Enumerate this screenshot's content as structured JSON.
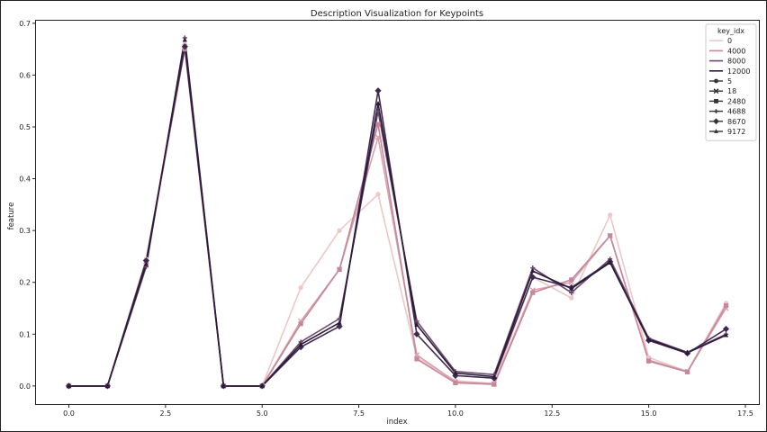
{
  "chart_data": {
    "type": "line",
    "title": "Description Visualization for Keypoints",
    "xlabel": "index",
    "ylabel": "feature",
    "xlim": [
      -0.85,
      17.85
    ],
    "ylim": [
      -0.035,
      0.705
    ],
    "xticks": [
      0.0,
      2.5,
      5.0,
      7.5,
      10.0,
      12.5,
      15.0,
      17.5
    ],
    "xtick_labels": [
      "0.0",
      "2.5",
      "5.0",
      "7.5",
      "10.0",
      "12.5",
      "15.0",
      "17.5"
    ],
    "yticks": [
      0.0,
      0.1,
      0.2,
      0.3,
      0.4,
      0.5,
      0.6,
      0.7
    ],
    "ytick_labels": [
      "0.0",
      "0.1",
      "0.2",
      "0.3",
      "0.4",
      "0.5",
      "0.6",
      "0.7"
    ],
    "grid": false,
    "legend": {
      "title": "key_idx",
      "placement": "top-right",
      "hue_entries": [
        {
          "label": "0",
          "color": "#ecc8c8"
        },
        {
          "label": "4000",
          "color": "#c7879a"
        },
        {
          "label": "8000",
          "color": "#6e4a6b"
        },
        {
          "label": "12000",
          "color": "#2a1b3a"
        }
      ],
      "style_entries": [
        {
          "label": "5",
          "marker": "circle"
        },
        {
          "label": "18",
          "marker": "x"
        },
        {
          "label": "2480",
          "marker": "square"
        },
        {
          "label": "4688",
          "marker": "plus"
        },
        {
          "label": "8670",
          "marker": "diamond"
        },
        {
          "label": "9172",
          "marker": "triangle"
        }
      ]
    },
    "x": [
      0,
      1,
      2,
      3,
      4,
      5,
      6,
      7,
      8,
      9,
      10,
      11,
      12,
      13,
      14,
      15,
      16,
      17
    ],
    "series": [
      {
        "name": "5",
        "color": "#ecc8c8",
        "marker": "circle",
        "values": [
          0,
          0,
          0.245,
          0.66,
          0,
          0,
          0.19,
          0.3,
          0.37,
          0.055,
          0.01,
          0.005,
          0.21,
          0.17,
          0.33,
          0.055,
          0.028,
          0.16
        ]
      },
      {
        "name": "18",
        "color": "#d9a3ae",
        "marker": "x",
        "values": [
          0,
          0,
          0.24,
          0.655,
          0,
          0,
          0.125,
          0.225,
          0.48,
          0.06,
          0.008,
          0.004,
          0.185,
          0.2,
          0.29,
          0.05,
          0.028,
          0.15
        ]
      },
      {
        "name": "2480",
        "color": "#c7879a",
        "marker": "square",
        "values": [
          0,
          0,
          0.238,
          0.65,
          0,
          0,
          0.12,
          0.225,
          0.505,
          0.052,
          0.006,
          0.003,
          0.18,
          0.205,
          0.29,
          0.048,
          0.027,
          0.155
        ]
      },
      {
        "name": "4688",
        "color": "#6e4a6b",
        "marker": "plus",
        "values": [
          0,
          0,
          0.23,
          0.672,
          0,
          0,
          0.085,
          0.13,
          0.53,
          0.125,
          0.028,
          0.022,
          0.228,
          0.18,
          0.245,
          0.092,
          0.065,
          0.1
        ]
      },
      {
        "name": "8670",
        "color": "#3f2a4f",
        "marker": "diamond",
        "values": [
          0,
          0,
          0.242,
          0.655,
          0,
          0,
          0.075,
          0.115,
          0.57,
          0.1,
          0.02,
          0.015,
          0.21,
          0.19,
          0.24,
          0.088,
          0.063,
          0.11
        ]
      },
      {
        "name": "9172",
        "color": "#2a1b3a",
        "marker": "triangle",
        "values": [
          0,
          0,
          0.235,
          0.668,
          0,
          0,
          0.08,
          0.122,
          0.545,
          0.118,
          0.025,
          0.018,
          0.222,
          0.188,
          0.238,
          0.09,
          0.064,
          0.098
        ]
      }
    ]
  }
}
